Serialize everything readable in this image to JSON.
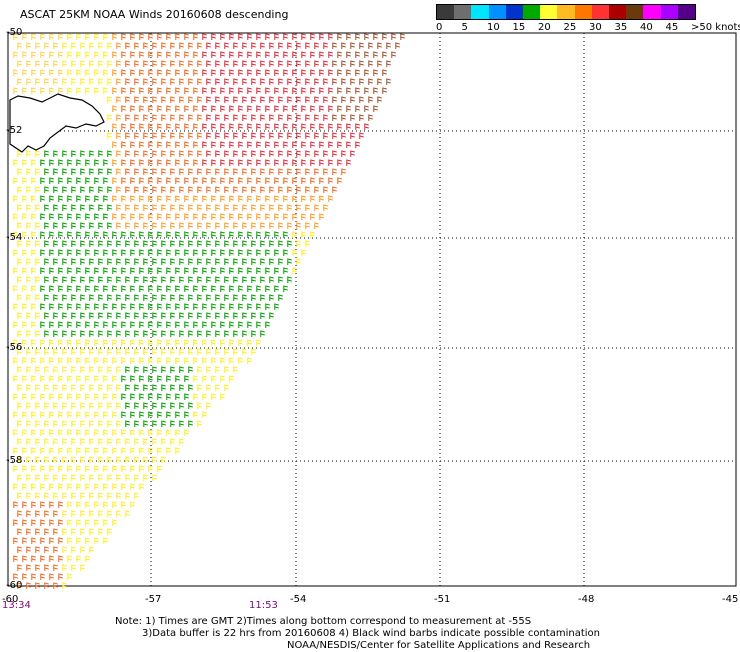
{
  "title": "ASCAT 25KM NOAA Winds 20160608 descending",
  "legend": {
    "labels": [
      "0",
      "5",
      "10",
      "15",
      "20",
      "25",
      "30",
      "35",
      "40",
      "45",
      ">50 knots"
    ],
    "colors": [
      "#3a3a3a",
      "#6e6e6e",
      "#00e5ff",
      "#0090ff",
      "#0033cc",
      "#00aa00",
      "#ffff33",
      "#ffbb22",
      "#ff7700",
      "#ff3333",
      "#aa0000",
      "#6b3a0a",
      "#ff00ff",
      "#aa00ff",
      "#550088"
    ]
  },
  "axes": {
    "lat_labels": [
      "-50",
      "-52",
      "-54",
      "-56",
      "-58",
      "-60"
    ],
    "lon_labels": [
      "-60",
      "-57",
      "-54",
      "-51",
      "-48",
      "-45"
    ]
  },
  "times": {
    "left": "13:34",
    "middle": "11:53"
  },
  "notes": [
    "Note: 1) Times are GMT 2)Times along bottom correspond to measurement at -55S",
    "3)Data buffer is 22 hrs from 20160608 4) Black wind barbs indicate possible contamination",
    "NOAA/NESDIS/Center for Satellite Applications and Research"
  ]
}
